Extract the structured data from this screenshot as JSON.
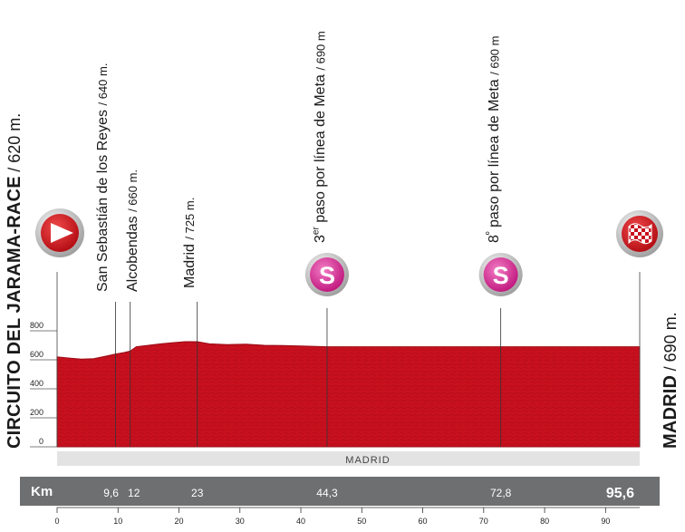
{
  "chart_data": {
    "type": "area",
    "xlabel": "Km",
    "ylim": [
      0,
      800
    ],
    "xlim": [
      0,
      95.6
    ],
    "y_ticks": [
      0,
      200,
      400,
      600,
      800
    ],
    "x_ticks": [
      0,
      10,
      20,
      30,
      40,
      50,
      60,
      70,
      80,
      90
    ],
    "x": [
      0,
      2,
      4,
      6,
      8,
      9.6,
      11,
      12,
      13,
      15,
      17,
      19,
      21,
      23,
      25,
      28,
      31,
      34,
      37,
      40,
      44.3,
      50,
      60,
      72.8,
      85,
      95.6
    ],
    "y": [
      620,
      612,
      605,
      608,
      625,
      640,
      650,
      660,
      690,
      700,
      710,
      718,
      725,
      725,
      710,
      705,
      708,
      700,
      698,
      695,
      690,
      690,
      690,
      690,
      690,
      690
    ],
    "area_label": "MADRID",
    "start": {
      "name": "CIRCUITO DEL JARAMA-RACE",
      "altitude": "/ 620 m."
    },
    "finish": {
      "name": "MADRID",
      "altitude": "/ 690 m."
    },
    "km_label": "Km",
    "waypoints": [
      {
        "km": 9.6,
        "km_label": "9,6",
        "name": "San Sebastián de los Reyes",
        "altitude": "/ 640 m."
      },
      {
        "km": 12,
        "km_label": "12",
        "name": "Alcobendas",
        "altitude": "/ 660 m."
      },
      {
        "km": 23,
        "km_label": "23",
        "name": "Madrid",
        "altitude": "/ 725 m."
      },
      {
        "km": 44.3,
        "km_label": "44,3",
        "name_pre": "3",
        "name_sup": "er",
        "name": " paso por línea de Meta",
        "altitude": "/ 690 m",
        "sprint": true
      },
      {
        "km": 72.8,
        "km_label": "72,8",
        "name_pre": "8",
        "name_sup": "º",
        "name": " paso por línea de Meta",
        "altitude": "/ 690 m",
        "sprint": true
      }
    ],
    "total_km_label": "95,6",
    "sprint_symbol": "S",
    "colors": {
      "area": "#c8101e",
      "area_dark": "#9a0c16",
      "bar": "#6d6f71",
      "madrid_band": "#e3e3e3",
      "sprint": "#d9339a"
    }
  }
}
